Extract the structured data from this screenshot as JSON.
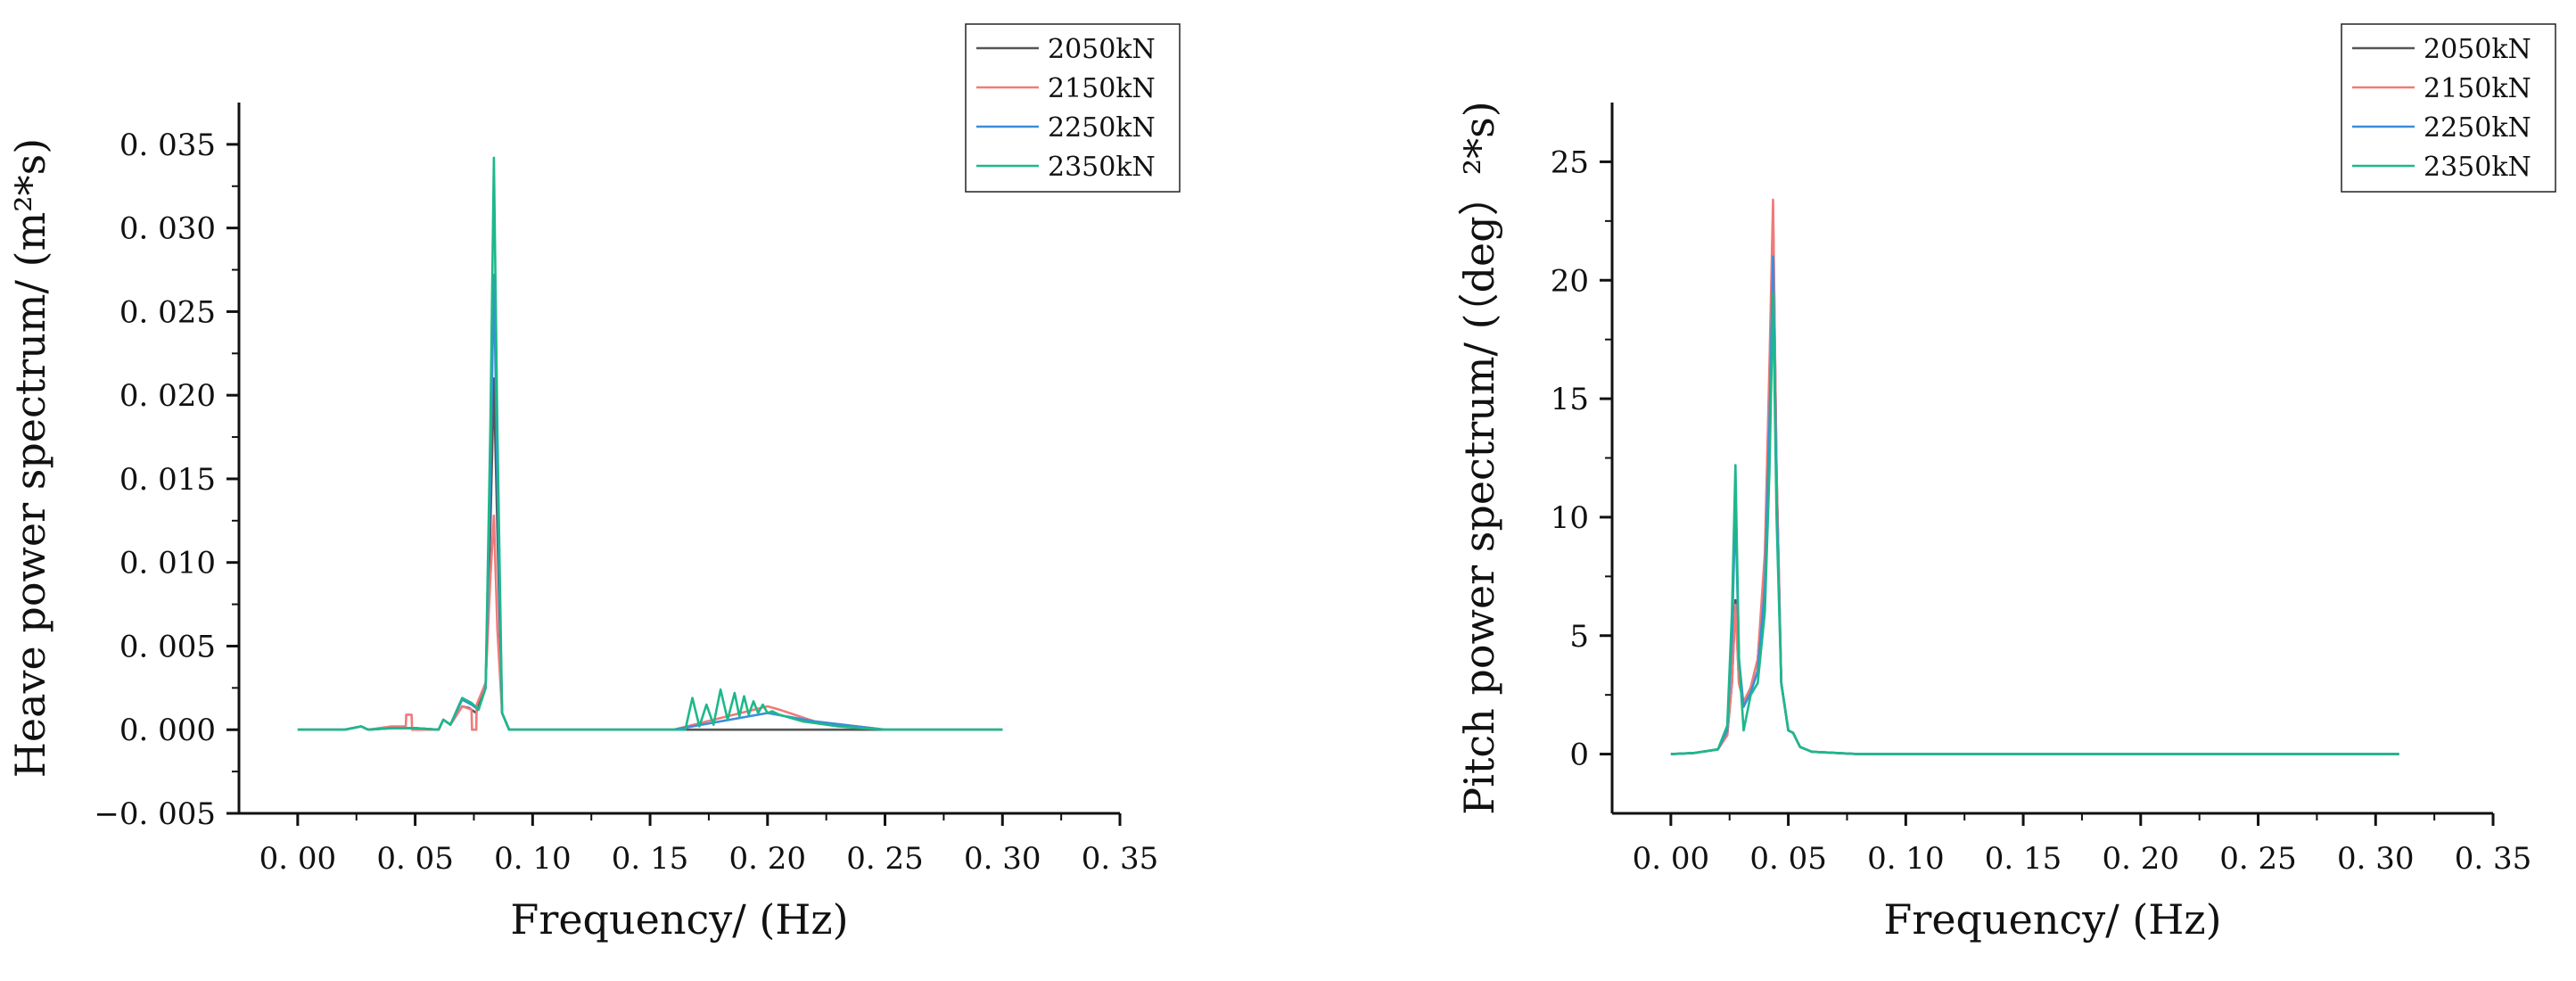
{
  "chart_data": [
    {
      "type": "line",
      "xlabel": "Frequency/ (Hz)",
      "ylabel": "Heave power spectrum/ (m²*s)",
      "xlim": [
        -0.025,
        0.35
      ],
      "ylim": [
        -0.005,
        0.0375
      ],
      "xticks": [
        0.0,
        0.05,
        0.1,
        0.15,
        0.2,
        0.25,
        0.3,
        0.35
      ],
      "xtick_labels": [
        "0. 00",
        "0. 05",
        "0. 10",
        "0. 15",
        "0. 20",
        "0. 25",
        "0. 30",
        "0. 35"
      ],
      "yticks": [
        -0.005,
        0.0,
        0.005,
        0.01,
        0.015,
        0.02,
        0.025,
        0.03,
        0.035
      ],
      "ytick_labels": [
        "−0. 005",
        "0. 000",
        "0. 005",
        "0. 010",
        "0. 015",
        "0. 020",
        "0. 025",
        "0. 030",
        "0. 035"
      ],
      "legend_position": "top-right",
      "series": [
        {
          "name": "2050kN",
          "color": "#555555",
          "x": [
            0,
            0.02,
            0.027,
            0.03,
            0.04,
            0.05,
            0.06,
            0.062,
            0.065,
            0.07,
            0.073,
            0.076,
            0.078,
            0.08,
            0.082,
            0.0835,
            0.085,
            0.087,
            0.09,
            0.16,
            0.2,
            0.22,
            0.25,
            0.3
          ],
          "y": [
            0,
            0,
            0.0002,
            0,
            0.0001,
            0.0001,
            0,
            0.0006,
            0.0003,
            0.0014,
            0.0013,
            0.001,
            0.002,
            0.0025,
            0.012,
            0.021,
            0.012,
            0.001,
            0,
            0,
            0,
            0,
            0,
            0
          ]
        },
        {
          "name": "2150kN",
          "color": "#f07a7a",
          "x": [
            0,
            0.02,
            0.027,
            0.03,
            0.04,
            0.046,
            0.0462,
            0.0485,
            0.0487,
            0.055,
            0.06,
            0.062,
            0.065,
            0.07,
            0.074,
            0.0742,
            0.076,
            0.0762,
            0.08,
            0.082,
            0.0835,
            0.085,
            0.087,
            0.09,
            0.16,
            0.2,
            0.205,
            0.22,
            0.25,
            0.3
          ],
          "y": [
            0,
            0,
            0.0002,
            0,
            0.0002,
            0.0002,
            0.0009,
            0.0009,
            0,
            0,
            0,
            0.0006,
            0.0003,
            0.0014,
            0.0012,
            0,
            0,
            0.0015,
            0.0028,
            0.009,
            0.0128,
            0.006,
            0.001,
            0,
            0,
            0.0014,
            0.0012,
            0.0005,
            0,
            0
          ]
        },
        {
          "name": "2250kN",
          "color": "#3c8ddc",
          "x": [
            0,
            0.02,
            0.027,
            0.03,
            0.04,
            0.05,
            0.06,
            0.062,
            0.065,
            0.07,
            0.074,
            0.077,
            0.08,
            0.082,
            0.0835,
            0.085,
            0.087,
            0.09,
            0.16,
            0.2,
            0.22,
            0.25,
            0.3
          ],
          "y": [
            0,
            0,
            0.0002,
            0,
            0.0001,
            0.0001,
            0,
            0.0006,
            0.0003,
            0.0018,
            0.0015,
            0.0012,
            0.0025,
            0.015,
            0.0272,
            0.015,
            0.001,
            0,
            0,
            0.001,
            0.0005,
            0,
            0
          ]
        },
        {
          "name": "2350kN",
          "color": "#1db88a",
          "x": [
            0,
            0.02,
            0.027,
            0.03,
            0.04,
            0.05,
            0.06,
            0.062,
            0.065,
            0.07,
            0.074,
            0.077,
            0.08,
            0.082,
            0.0835,
            0.085,
            0.087,
            0.09,
            0.165,
            0.168,
            0.171,
            0.174,
            0.177,
            0.18,
            0.183,
            0.186,
            0.188,
            0.19,
            0.192,
            0.194,
            0.196,
            0.198,
            0.2,
            0.202,
            0.205,
            0.21,
            0.215,
            0.22,
            0.23,
            0.24,
            0.25,
            0.26,
            0.3
          ],
          "y": [
            0,
            0,
            0.0002,
            0,
            0.0001,
            0.0001,
            0,
            0.0006,
            0.0003,
            0.0019,
            0.0016,
            0.0012,
            0.0025,
            0.018,
            0.0342,
            0.018,
            0.001,
            0,
            0,
            0.0019,
            0.0002,
            0.0015,
            0.0003,
            0.0024,
            0.0006,
            0.0022,
            0.0008,
            0.002,
            0.0009,
            0.0017,
            0.001,
            0.0015,
            0.001,
            0.0011,
            0.0009,
            0.0007,
            0.0005,
            0.0004,
            0.0002,
            0.0001,
            0,
            0,
            0
          ]
        }
      ]
    },
    {
      "type": "line",
      "xlabel": "Frequency/ (Hz)",
      "ylabel": "Pitch power spectrum/ (（deg）²*s)",
      "xlim": [
        -0.025,
        0.35
      ],
      "ylim": [
        -2.5,
        27.5
      ],
      "xticks": [
        0.0,
        0.05,
        0.1,
        0.15,
        0.2,
        0.25,
        0.3,
        0.35
      ],
      "xtick_labels": [
        "0. 00",
        "0. 05",
        "0. 10",
        "0. 15",
        "0. 20",
        "0. 25",
        "0. 30",
        "0. 35"
      ],
      "yticks": [
        0,
        5,
        10,
        15,
        20,
        25
      ],
      "ytick_labels": [
        "0",
        "5",
        "10",
        "15",
        "20",
        "25"
      ],
      "legend_position": "top-right",
      "series": [
        {
          "name": "2050kN",
          "color": "#555555",
          "x": [
            0,
            0.01,
            0.02,
            0.024,
            0.026,
            0.0275,
            0.029,
            0.031,
            0.034,
            0.037,
            0.04,
            0.042,
            0.0435,
            0.045,
            0.047,
            0.05,
            0.052,
            0.055,
            0.06,
            0.08,
            0.31
          ],
          "y": [
            0,
            0.05,
            0.2,
            0.8,
            3.0,
            6.5,
            3.0,
            2.2,
            2.8,
            4.0,
            8.0,
            16.0,
            22.8,
            12.0,
            3.0,
            1.0,
            0.9,
            0.3,
            0.1,
            0,
            0
          ]
        },
        {
          "name": "2150kN",
          "color": "#f07a7a",
          "x": [
            0,
            0.01,
            0.02,
            0.024,
            0.026,
            0.0275,
            0.029,
            0.031,
            0.034,
            0.037,
            0.04,
            0.042,
            0.0435,
            0.045,
            0.047,
            0.05,
            0.052,
            0.055,
            0.06,
            0.08,
            0.31
          ],
          "y": [
            0,
            0.05,
            0.2,
            0.8,
            3.0,
            6.3,
            3.0,
            2.2,
            2.8,
            4.0,
            8.5,
            16.5,
            23.4,
            12.0,
            3.0,
            1.0,
            0.9,
            0.3,
            0.1,
            0,
            0
          ]
        },
        {
          "name": "2250kN",
          "color": "#3c8ddc",
          "x": [
            0,
            0.01,
            0.02,
            0.024,
            0.026,
            0.0275,
            0.029,
            0.031,
            0.034,
            0.037,
            0.04,
            0.042,
            0.0435,
            0.045,
            0.047,
            0.05,
            0.052,
            0.055,
            0.06,
            0.08,
            0.31
          ],
          "y": [
            0,
            0.05,
            0.2,
            1.0,
            5.0,
            10.5,
            4.0,
            2.0,
            2.6,
            3.5,
            7.0,
            14.0,
            21.0,
            11.0,
            3.0,
            1.0,
            0.9,
            0.3,
            0.1,
            0,
            0
          ]
        },
        {
          "name": "2350kN",
          "color": "#1db88a",
          "x": [
            0,
            0.01,
            0.02,
            0.024,
            0.026,
            0.0275,
            0.029,
            0.031,
            0.034,
            0.037,
            0.04,
            0.042,
            0.0435,
            0.045,
            0.047,
            0.05,
            0.052,
            0.055,
            0.06,
            0.08,
            0.31
          ],
          "y": [
            0,
            0.05,
            0.2,
            1.2,
            6.0,
            12.2,
            4.0,
            1.0,
            2.5,
            3.0,
            6.0,
            12.0,
            19.5,
            10.0,
            3.0,
            1.0,
            0.9,
            0.3,
            0.1,
            0,
            0
          ]
        }
      ]
    }
  ]
}
